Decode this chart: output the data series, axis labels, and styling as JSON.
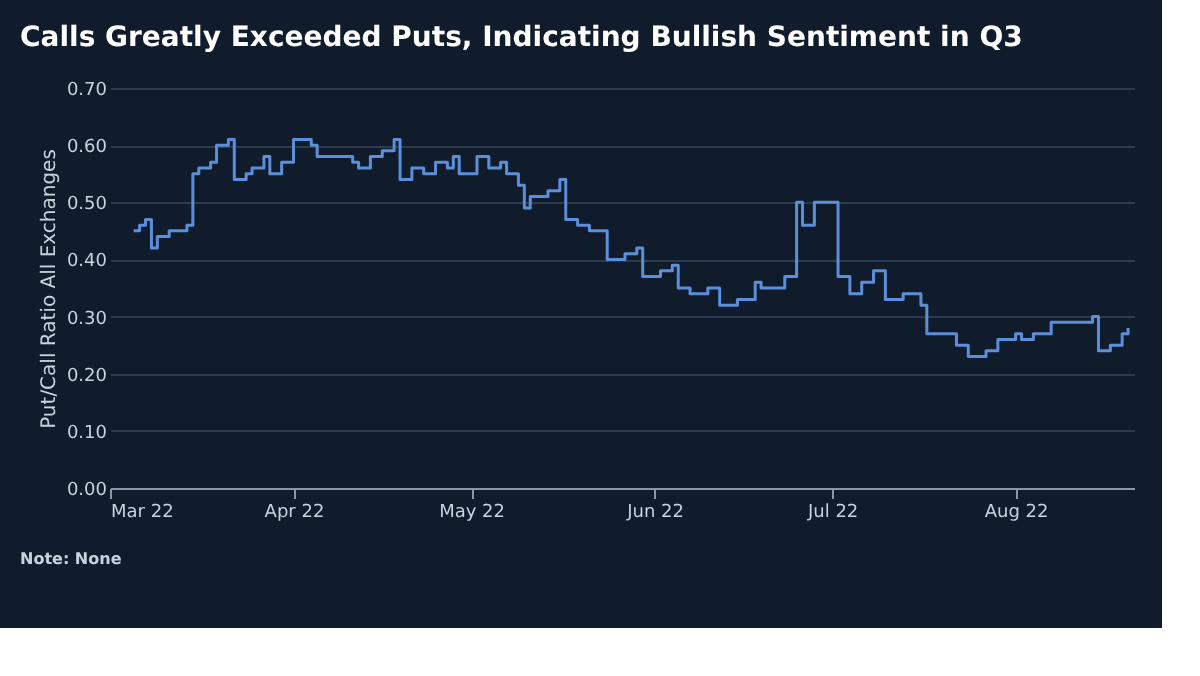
{
  "chart_data": {
    "type": "step",
    "title": "Calls Greatly Exceeded Puts, Indicating Bullish Sentiment in Q3",
    "ylabel": "Put/Call Ratio All Exchanges",
    "x": [
      "2022-03-05",
      "2022-03-06",
      "2022-03-07",
      "2022-03-08",
      "2022-03-09",
      "2022-03-11",
      "2022-03-14",
      "2022-03-15",
      "2022-03-16",
      "2022-03-18",
      "2022-03-19",
      "2022-03-21",
      "2022-03-22",
      "2022-03-24",
      "2022-03-25",
      "2022-03-27",
      "2022-03-28",
      "2022-03-30",
      "2022-04-01",
      "2022-04-02",
      "2022-04-04",
      "2022-04-05",
      "2022-04-08",
      "2022-04-11",
      "2022-04-12",
      "2022-04-14",
      "2022-04-16",
      "2022-04-18",
      "2022-04-19",
      "2022-04-21",
      "2022-04-23",
      "2022-04-25",
      "2022-04-27",
      "2022-04-28",
      "2022-04-29",
      "2022-05-02",
      "2022-05-04",
      "2022-05-06",
      "2022-05-07",
      "2022-05-09",
      "2022-05-10",
      "2022-05-11",
      "2022-05-14",
      "2022-05-16",
      "2022-05-17",
      "2022-05-19",
      "2022-05-21",
      "2022-05-24",
      "2022-05-27",
      "2022-05-29",
      "2022-05-30",
      "2022-06-02",
      "2022-06-04",
      "2022-06-05",
      "2022-06-07",
      "2022-06-10",
      "2022-06-12",
      "2022-06-15",
      "2022-06-18",
      "2022-06-19",
      "2022-06-23",
      "2022-06-25",
      "2022-06-26",
      "2022-06-28",
      "2022-06-30",
      "2022-07-02",
      "2022-07-04",
      "2022-07-06",
      "2022-07-08",
      "2022-07-10",
      "2022-07-13",
      "2022-07-16",
      "2022-07-17",
      "2022-07-20",
      "2022-07-22",
      "2022-07-24",
      "2022-07-27",
      "2022-07-29",
      "2022-08-01",
      "2022-08-02",
      "2022-08-04",
      "2022-08-07",
      "2022-08-10",
      "2022-08-14",
      "2022-08-15",
      "2022-08-17",
      "2022-08-19",
      "2022-08-20"
    ],
    "series": [
      {
        "color": "#5b8fd9",
        "values": [
          0.45,
          0.46,
          0.47,
          0.42,
          0.44,
          0.45,
          0.46,
          0.55,
          0.56,
          0.57,
          0.6,
          0.61,
          0.54,
          0.55,
          0.56,
          0.58,
          0.55,
          0.57,
          0.61,
          0.61,
          0.6,
          0.58,
          0.58,
          0.57,
          0.56,
          0.58,
          0.59,
          0.61,
          0.54,
          0.56,
          0.55,
          0.57,
          0.56,
          0.58,
          0.55,
          0.58,
          0.56,
          0.57,
          0.55,
          0.53,
          0.49,
          0.51,
          0.52,
          0.54,
          0.47,
          0.46,
          0.45,
          0.4,
          0.41,
          0.42,
          0.37,
          0.38,
          0.39,
          0.35,
          0.34,
          0.35,
          0.32,
          0.33,
          0.36,
          0.35,
          0.37,
          0.5,
          0.46,
          0.5,
          0.5,
          0.37,
          0.34,
          0.36,
          0.38,
          0.33,
          0.34,
          0.32,
          0.27,
          0.27,
          0.25,
          0.23,
          0.24,
          0.26,
          0.27,
          0.26,
          0.27,
          0.29,
          0.29,
          0.3,
          0.24,
          0.25,
          0.27,
          0.28
        ]
      }
    ],
    "xlim": [
      "2022-03-01",
      "2022-08-21"
    ],
    "xticks": [
      {
        "value": "2022-03-01",
        "label": "Mar 22"
      },
      {
        "value": "2022-04-01",
        "label": "Apr 22"
      },
      {
        "value": "2022-05-01",
        "label": "May 22"
      },
      {
        "value": "2022-06-01",
        "label": "Jun 22"
      },
      {
        "value": "2022-07-01",
        "label": "Jul 22"
      },
      {
        "value": "2022-08-01",
        "label": "Aug 22"
      }
    ],
    "ylim": [
      0,
      0.7
    ],
    "yticks": [
      {
        "value": 0,
        "label": "0.00"
      },
      {
        "value": 0.1,
        "label": "0.10"
      },
      {
        "value": 0.2,
        "label": "0.20"
      },
      {
        "value": 0.3,
        "label": "0.30"
      },
      {
        "value": 0.4,
        "label": "0.40"
      },
      {
        "value": 0.5,
        "label": "0.50"
      },
      {
        "value": 0.6,
        "label": "0.60"
      },
      {
        "value": 0.7,
        "label": "0.70"
      }
    ],
    "grid": "y",
    "legend": false,
    "marker": "none",
    "line_style": "solid",
    "annotations": [
      "Note: None"
    ]
  }
}
